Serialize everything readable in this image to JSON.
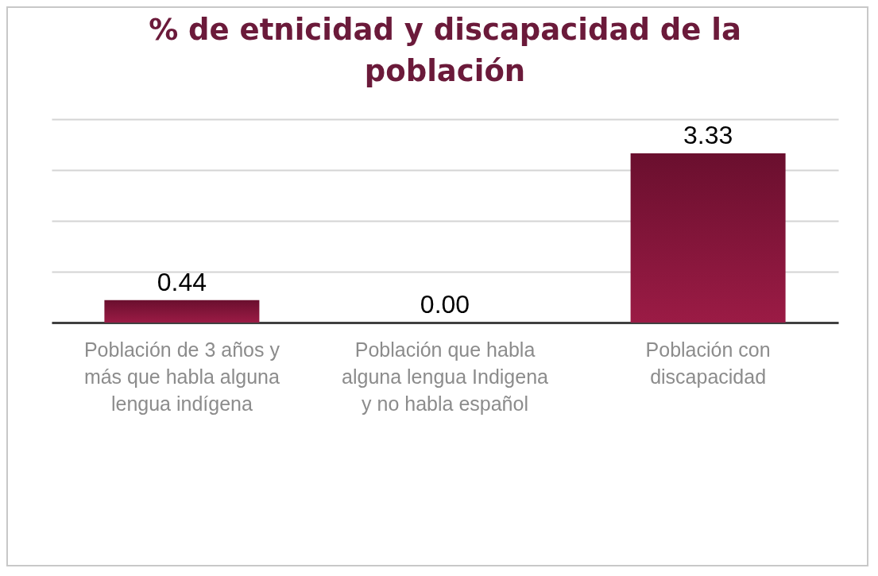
{
  "chart_data": {
    "type": "bar",
    "title": "% de etnicidad  y discapacidad de la población",
    "categories": [
      "Población de 3 años y más que habla alguna lengua indígena",
      "Población que habla alguna lengua Indigena  y no habla español",
      "Población con discapacidad"
    ],
    "values": [
      0.44,
      0,
      3.33
    ],
    "value_labels": [
      "0.44",
      "0.00",
      "3.33"
    ],
    "color": "#9b1b45",
    "ylim": [
      0,
      4
    ],
    "yticks": [
      {
        "value": 0,
        "label": null
      },
      {
        "value": 1,
        "label": null
      },
      {
        "value": 2,
        "label": null
      },
      {
        "value": 3,
        "label": null
      },
      {
        "value": 4,
        "label": null
      }
    ],
    "grid": "y",
    "tick_labels": "x"
  }
}
